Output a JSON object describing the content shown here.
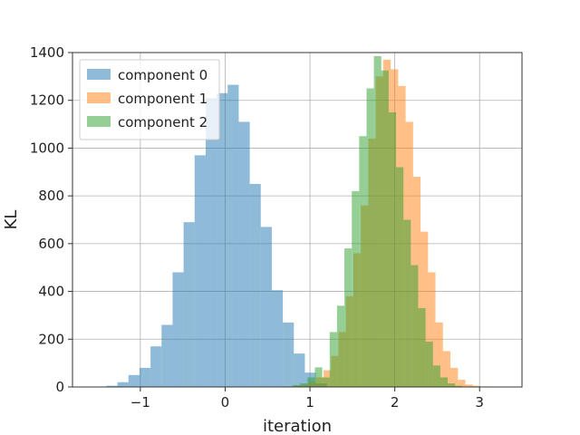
{
  "chart_data": {
    "type": "histogram",
    "xlabel": "iteration",
    "ylabel": "KL",
    "xlim": [
      -1.8,
      3.5
    ],
    "ylim": [
      0,
      1400
    ],
    "xticks": [
      -1,
      0,
      1,
      2,
      3
    ],
    "xtick_labels": [
      "−1",
      "0",
      "1",
      "2",
      "3"
    ],
    "yticks": [
      0,
      200,
      400,
      600,
      800,
      1000,
      1200,
      1400
    ],
    "grid": true,
    "legend_position": "upper-left",
    "series": [
      {
        "name": "component 0",
        "color": "#1f77b4",
        "alpha": 0.5,
        "bin_start": -1.4,
        "bin_width": 0.13,
        "counts": [
          5,
          20,
          50,
          80,
          170,
          260,
          480,
          690,
          970,
          1210,
          1230,
          1265,
          1110,
          850,
          670,
          405,
          270,
          140,
          60,
          15
        ]
      },
      {
        "name": "component 1",
        "color": "#ff7f0e",
        "alpha": 0.5,
        "bin_start": 0.72,
        "bin_width": 0.088,
        "counts": [
          2,
          4,
          8,
          20,
          40,
          70,
          130,
          230,
          380,
          560,
          760,
          1040,
          1300,
          1370,
          1330,
          1260,
          1110,
          880,
          650,
          480,
          270,
          150,
          80,
          30,
          10,
          5,
          2,
          1
        ]
      },
      {
        "name": "component 2",
        "color": "#2ca02c",
        "alpha": 0.5,
        "bin_start": 0.71,
        "bin_width": 0.087,
        "counts": [
          2,
          8,
          15,
          40,
          82,
          40,
          230,
          340,
          580,
          820,
          1050,
          1250,
          1385,
          1325,
          1150,
          920,
          700,
          510,
          330,
          190,
          90,
          40,
          15,
          5
        ]
      }
    ]
  }
}
